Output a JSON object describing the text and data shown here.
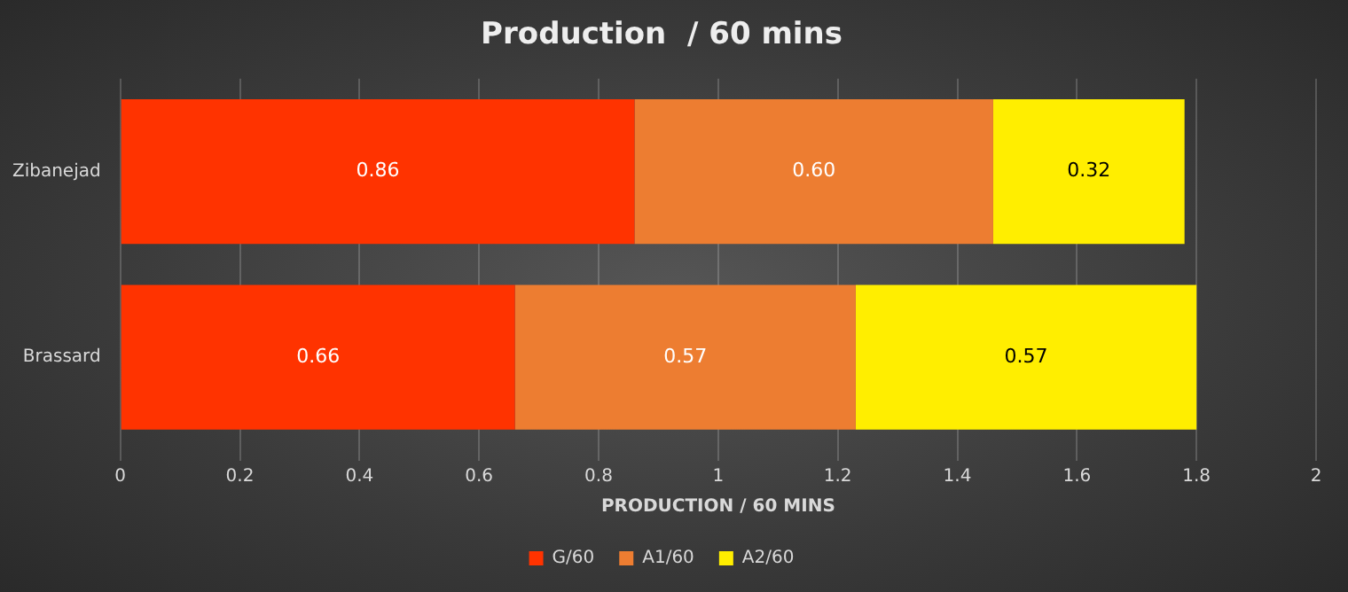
{
  "chart_data": {
    "type": "bar",
    "orientation": "horizontal",
    "stacked": true,
    "title": "Production  / 60 mins",
    "xlabel": "PRODUCTION / 60 MINS",
    "categories": [
      "Zibanejad",
      "Brassard"
    ],
    "series": [
      {
        "name": "G/60",
        "color": "#ff3300",
        "values": [
          0.86,
          0.66
        ],
        "value_labels": [
          "0.86",
          "0.66"
        ]
      },
      {
        "name": "A1/60",
        "color": "#ed7d31",
        "values": [
          0.6,
          0.57
        ],
        "value_labels": [
          "0.60",
          "0.57"
        ]
      },
      {
        "name": "A2/60",
        "color": "#ffee00",
        "values": [
          0.32,
          0.57
        ],
        "value_labels": [
          "0.32",
          "0.57"
        ]
      }
    ],
    "xlim": [
      0,
      2
    ],
    "xticks": [
      0,
      0.2,
      0.4,
      0.6,
      0.8,
      1,
      1.2,
      1.4,
      1.6,
      1.8,
      2
    ],
    "grid": "x",
    "legend": "bottom"
  }
}
